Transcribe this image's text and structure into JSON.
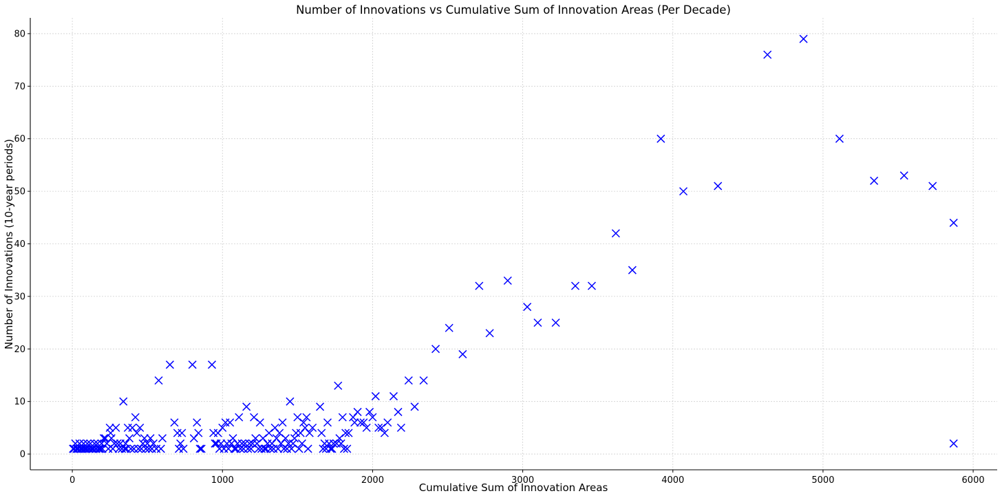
{
  "chart_data": {
    "type": "scatter",
    "title": "Number of Innovations vs Cumulative Sum of Innovation Areas (Per Decade)",
    "xlabel": "Cumulative Sum of Innovation Areas",
    "ylabel": "Number of Innovations (10-year periods)",
    "xlim": [
      -280,
      6160
    ],
    "ylim": [
      -3,
      83
    ],
    "xticks": [
      0,
      1000,
      2000,
      3000,
      4000,
      5000,
      6000
    ],
    "yticks": [
      0,
      10,
      20,
      30,
      40,
      50,
      60,
      70,
      80
    ],
    "grid": true,
    "marker": "x",
    "color": "#0000ff",
    "series": [
      {
        "x": [
          5,
          12,
          20,
          28,
          35,
          40,
          48,
          55,
          60,
          68,
          75,
          80,
          88,
          95,
          100,
          108,
          115,
          120,
          128,
          135,
          140,
          148,
          155,
          160,
          168,
          175,
          180,
          188,
          195,
          200,
          210,
          220,
          230,
          240,
          250,
          255,
          260,
          270,
          280,
          290,
          300,
          310,
          320,
          330,
          340,
          350,
          355,
          360,
          370,
          380,
          390,
          400,
          410,
          420,
          430,
          440,
          450,
          460,
          470,
          480,
          490,
          500,
          510,
          520,
          530,
          540,
          560,
          575,
          590,
          600,
          650,
          680,
          700,
          710,
          720,
          730,
          740,
          800,
          810,
          830,
          840,
          850,
          860,
          930,
          940,
          950,
          960,
          970,
          980,
          990,
          1000,
          1010,
          1020,
          1030,
          1040,
          1050,
          1060,
          1070,
          1080,
          1090,
          1100,
          1110,
          1120,
          1130,
          1140,
          1150,
          1160,
          1170,
          1180,
          1190,
          1200,
          1210,
          1220,
          1230,
          1240,
          1250,
          1260,
          1270,
          1280,
          1290,
          1300,
          1310,
          1320,
          1330,
          1340,
          1350,
          1360,
          1370,
          1380,
          1390,
          1400,
          1410,
          1420,
          1430,
          1440,
          1450,
          1460,
          1470,
          1480,
          1490,
          1500,
          1510,
          1520,
          1530,
          1540,
          1550,
          1560,
          1570,
          1580,
          1600,
          1650,
          1660,
          1670,
          1680,
          1690,
          1700,
          1710,
          1720,
          1730,
          1740,
          1760,
          1770,
          1780,
          1790,
          1800,
          1810,
          1820,
          1830,
          1840,
          1870,
          1880,
          1900,
          1920,
          1940,
          1960,
          1980,
          2000,
          2020,
          2040,
          2060,
          2080,
          2100,
          2140,
          2170,
          2190,
          2240,
          2280,
          2340,
          2420,
          2510,
          2600,
          2710,
          2780,
          2900,
          3030,
          3100,
          3220,
          3350,
          3460,
          3620,
          3730,
          3920,
          4070,
          4300,
          4630,
          4870,
          5110,
          5340,
          5540,
          5730,
          5870,
          5870
        ],
        "y": [
          1,
          1,
          2,
          1,
          1,
          1,
          2,
          1,
          1,
          1,
          2,
          1,
          1,
          1,
          2,
          1,
          1,
          2,
          1,
          1,
          1,
          2,
          1,
          1,
          2,
          1,
          1,
          1,
          2,
          1,
          3,
          3,
          2,
          1,
          5,
          4,
          3,
          1,
          2,
          5,
          2,
          1,
          2,
          1,
          10,
          1,
          2,
          1,
          5,
          3,
          1,
          5,
          1,
          7,
          4,
          1,
          5,
          1,
          2,
          3,
          1,
          2,
          1,
          3,
          1,
          2,
          1,
          14,
          1,
          3,
          17,
          6,
          4,
          1,
          2,
          4,
          1,
          17,
          3,
          6,
          4,
          1,
          1,
          17,
          4,
          2,
          2,
          4,
          1,
          2,
          5,
          1,
          6,
          2,
          1,
          6,
          2,
          3,
          1,
          1,
          2,
          7,
          1,
          2,
          1,
          2,
          9,
          1,
          2,
          1,
          2,
          7,
          3,
          2,
          1,
          6,
          1,
          3,
          1,
          1,
          2,
          4,
          1,
          2,
          1,
          5,
          3,
          1,
          4,
          2,
          6,
          1,
          3,
          1,
          2,
          10,
          1,
          2,
          3,
          4,
          7,
          1,
          4,
          2,
          6,
          5,
          7,
          1,
          4,
          5,
          9,
          4,
          1,
          2,
          1,
          6,
          2,
          1,
          1,
          2,
          2,
          13,
          3,
          2,
          7,
          1,
          4,
          1,
          4,
          7,
          6,
          8,
          6,
          6,
          5,
          8,
          7,
          11,
          5,
          5,
          4,
          6,
          11,
          8,
          5,
          14,
          9,
          14,
          20,
          24,
          19,
          32,
          23,
          33,
          28,
          25,
          25,
          32,
          32,
          42,
          35,
          60,
          50,
          51,
          76,
          79,
          60,
          52,
          53,
          51,
          44,
          2
        ]
      }
    ]
  }
}
